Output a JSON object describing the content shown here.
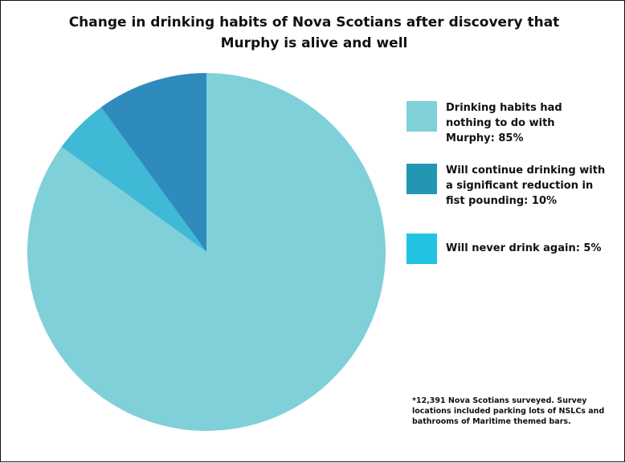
{
  "chart_data": {
    "type": "pie",
    "title": "Change in drinking habits of Nova Scotians after discovery that Murphy is alive and well",
    "slices": [
      {
        "label": "Drinking habits had nothing to do with Murphy: 85%",
        "value": 85,
        "color": "#80d0d9",
        "legend_color": "#80d0d9"
      },
      {
        "label": "Will never drink again: 5%",
        "value": 5,
        "color": "#3fb9d6",
        "legend_color": "#22c3e2"
      },
      {
        "label": "Will continue drinking with a significant reduction in fist pounding: 10%",
        "value": 10,
        "color": "#2f8bbd",
        "legend_color": "#2296b3"
      }
    ],
    "legend": [
      {
        "text": "Drinking habits had nothing to do with Murphy: 85%",
        "color": "#80d0d9"
      },
      {
        "text": "Will continue drinking with a significant reduction in fist pounding: 10%",
        "color": "#2296b3"
      },
      {
        "text": "Will never drink again: 5%",
        "color": "#22c3e2"
      }
    ],
    "legend_placement": "right",
    "footnote": "*12,391 Nova Scotians surveyed. Survey locations included parking lots of NSLCs and bathrooms of Maritime themed bars."
  }
}
